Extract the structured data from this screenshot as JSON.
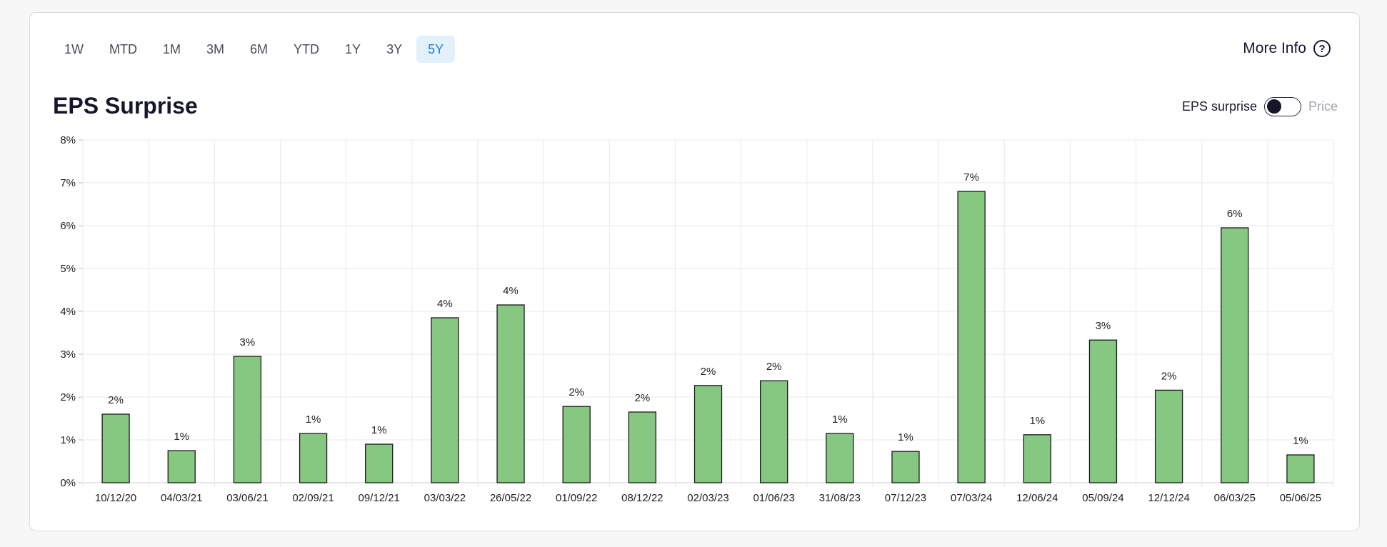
{
  "range_tabs": [
    {
      "label": "1W",
      "active": false
    },
    {
      "label": "MTD",
      "active": false
    },
    {
      "label": "1M",
      "active": false
    },
    {
      "label": "3M",
      "active": false
    },
    {
      "label": "6M",
      "active": false
    },
    {
      "label": "YTD",
      "active": false
    },
    {
      "label": "1Y",
      "active": false
    },
    {
      "label": "3Y",
      "active": false
    },
    {
      "label": "5Y",
      "active": true
    }
  ],
  "more_info": {
    "label": "More Info",
    "icon": "help-icon",
    "icon_glyph": "?"
  },
  "toggle": {
    "left_label": "EPS surprise",
    "right_label": "Price",
    "state": "EPS surprise"
  },
  "colors": {
    "bar_fill": "#86c882",
    "bar_stroke": "#1a1a1a",
    "accent": "#1a7fd8"
  },
  "chart_data": {
    "type": "bar",
    "title": "EPS Surprise",
    "xlabel": "",
    "ylabel": "",
    "ylim": [
      0,
      8
    ],
    "yticks": [
      "0%",
      "1%",
      "2%",
      "3%",
      "4%",
      "5%",
      "6%",
      "7%",
      "8%"
    ],
    "grid": true,
    "categories": [
      "10/12/20",
      "04/03/21",
      "03/06/21",
      "02/09/21",
      "09/12/21",
      "03/03/22",
      "26/05/22",
      "01/09/22",
      "08/12/22",
      "02/03/23",
      "01/06/23",
      "31/08/23",
      "07/12/23",
      "07/03/24",
      "12/06/24",
      "05/09/24",
      "12/12/24",
      "06/03/25",
      "05/06/25"
    ],
    "values": [
      1.6,
      0.75,
      2.95,
      1.15,
      0.9,
      3.85,
      4.15,
      1.78,
      1.65,
      2.27,
      2.38,
      1.15,
      0.73,
      6.8,
      1.12,
      3.33,
      2.16,
      5.95,
      0.65
    ],
    "data_labels": [
      "2%",
      "1%",
      "3%",
      "1%",
      "1%",
      "4%",
      "4%",
      "2%",
      "2%",
      "2%",
      "2%",
      "1%",
      "1%",
      "7%",
      "1%",
      "3%",
      "2%",
      "6%",
      "1%"
    ]
  }
}
